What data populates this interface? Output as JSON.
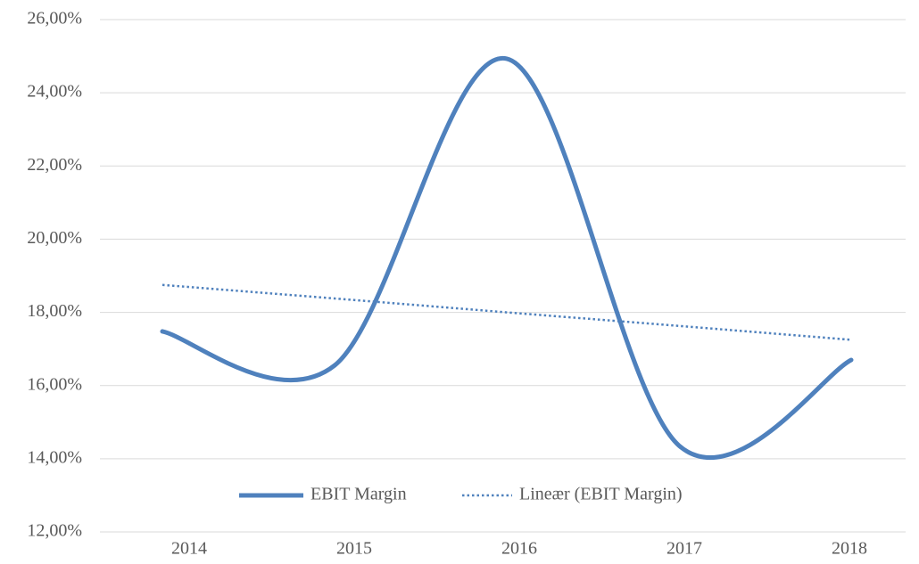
{
  "chart_data": {
    "type": "line",
    "categories": [
      "2014",
      "2015",
      "2016",
      "2017",
      "2018"
    ],
    "series": [
      {
        "name": "EBIT Margin",
        "color": "#4f81bd",
        "style": "solid",
        "smooth": true,
        "values": [
          17.48,
          16.55,
          24.93,
          14.36,
          16.7
        ]
      },
      {
        "name": "Lineær (EBIT Margin)",
        "color": "#4f81bd",
        "style": "dotted",
        "smooth": false,
        "values": [
          18.75,
          18.38,
          18.0,
          17.63,
          17.25
        ]
      }
    ],
    "ylim": [
      12,
      26
    ],
    "yticks": [
      {
        "value": 12,
        "label": "12,00%"
      },
      {
        "value": 14,
        "label": "14,00%"
      },
      {
        "value": 16,
        "label": "16,00%"
      },
      {
        "value": 18,
        "label": "18,00%"
      },
      {
        "value": 20,
        "label": "20,00%"
      },
      {
        "value": 22,
        "label": "22,00%"
      },
      {
        "value": 24,
        "label": "24,00%"
      },
      {
        "value": 26,
        "label": "26,00%"
      }
    ],
    "grid": true,
    "legend": "bottom"
  }
}
